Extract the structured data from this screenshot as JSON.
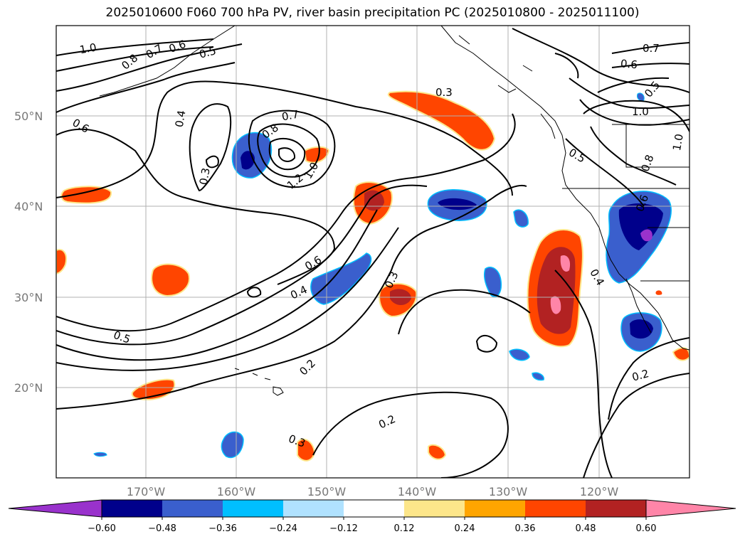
{
  "title": "2025010600 F060 700 hPa PV, river basin precipitation PC (2025010800 - 2025011100)",
  "lat_labels": [
    "50°N",
    "40°N",
    "30°N",
    "20°N"
  ],
  "lon_labels": [
    "170°W",
    "160°W",
    "150°W",
    "140°W",
    "130°W",
    "120°W"
  ],
  "contour_labels": [
    "1.0",
    "0.8",
    "0.7",
    "0.6",
    "0.5",
    "0.6",
    "0.4",
    "0.3",
    "0.7",
    "0.8",
    "1.2",
    "1.0",
    "0.3",
    "0.6",
    "0.4",
    "0.3",
    "0.5",
    "0.2",
    "0.2",
    "0.3",
    "0.7",
    "0.6",
    "0.5",
    "1.0",
    "1.0",
    "0.8",
    "0.5",
    "0.6",
    "0.4",
    "0.2"
  ],
  "colorbar": {
    "tick_labels": [
      "−0.60",
      "−0.48",
      "−0.36",
      "−0.24",
      "−0.12",
      "0.12",
      "0.24",
      "0.36",
      "0.48",
      "0.60"
    ],
    "colors": [
      "#9932cc",
      "#00008b",
      "#3a5fcd",
      "#00bfff",
      "#b0e2ff",
      "#ffffff",
      "#fde68a",
      "#ffa500",
      "#ff4500",
      "#b22222",
      "#ff85a8"
    ]
  }
}
